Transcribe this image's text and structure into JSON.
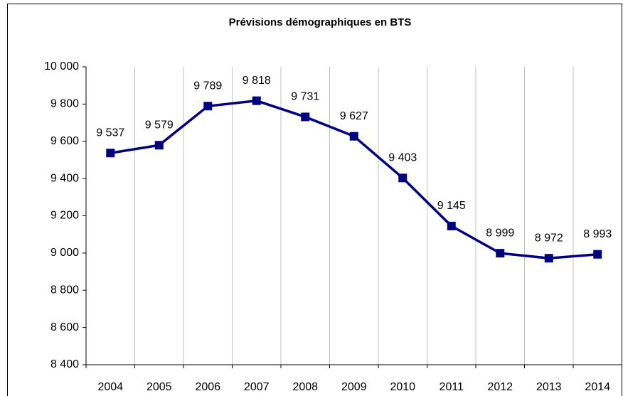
{
  "chart_data": {
    "type": "line",
    "title": "Prévisions démographiques en BTS",
    "categories": [
      "2004",
      "2005",
      "2006",
      "2007",
      "2008",
      "2009",
      "2010",
      "2011",
      "2012",
      "2013",
      "2014"
    ],
    "series": [
      {
        "color": "#000080",
        "values": [
          9537,
          9579,
          9789,
          9818,
          9731,
          9627,
          9403,
          9145,
          8999,
          8972,
          8993
        ],
        "value_labels": [
          "9 537",
          "9 579",
          "9 789",
          "9 818",
          "9 731",
          "9 627",
          "9 403",
          "9 145",
          "8 999",
          "8 972",
          "8 993"
        ]
      }
    ],
    "ylim": [
      8400,
      10000
    ],
    "yticks": [
      {
        "value": 8400,
        "label": "8 400"
      },
      {
        "value": 8600,
        "label": "8 600"
      },
      {
        "value": 8800,
        "label": "8 800"
      },
      {
        "value": 9000,
        "label": "9 000"
      },
      {
        "value": 9200,
        "label": "9 200"
      },
      {
        "value": 9400,
        "label": "9 400"
      },
      {
        "value": 9600,
        "label": "9 600"
      },
      {
        "value": 9800,
        "label": "9 800"
      },
      {
        "value": 10000,
        "label": "10 000"
      }
    ],
    "xgrid": true
  }
}
